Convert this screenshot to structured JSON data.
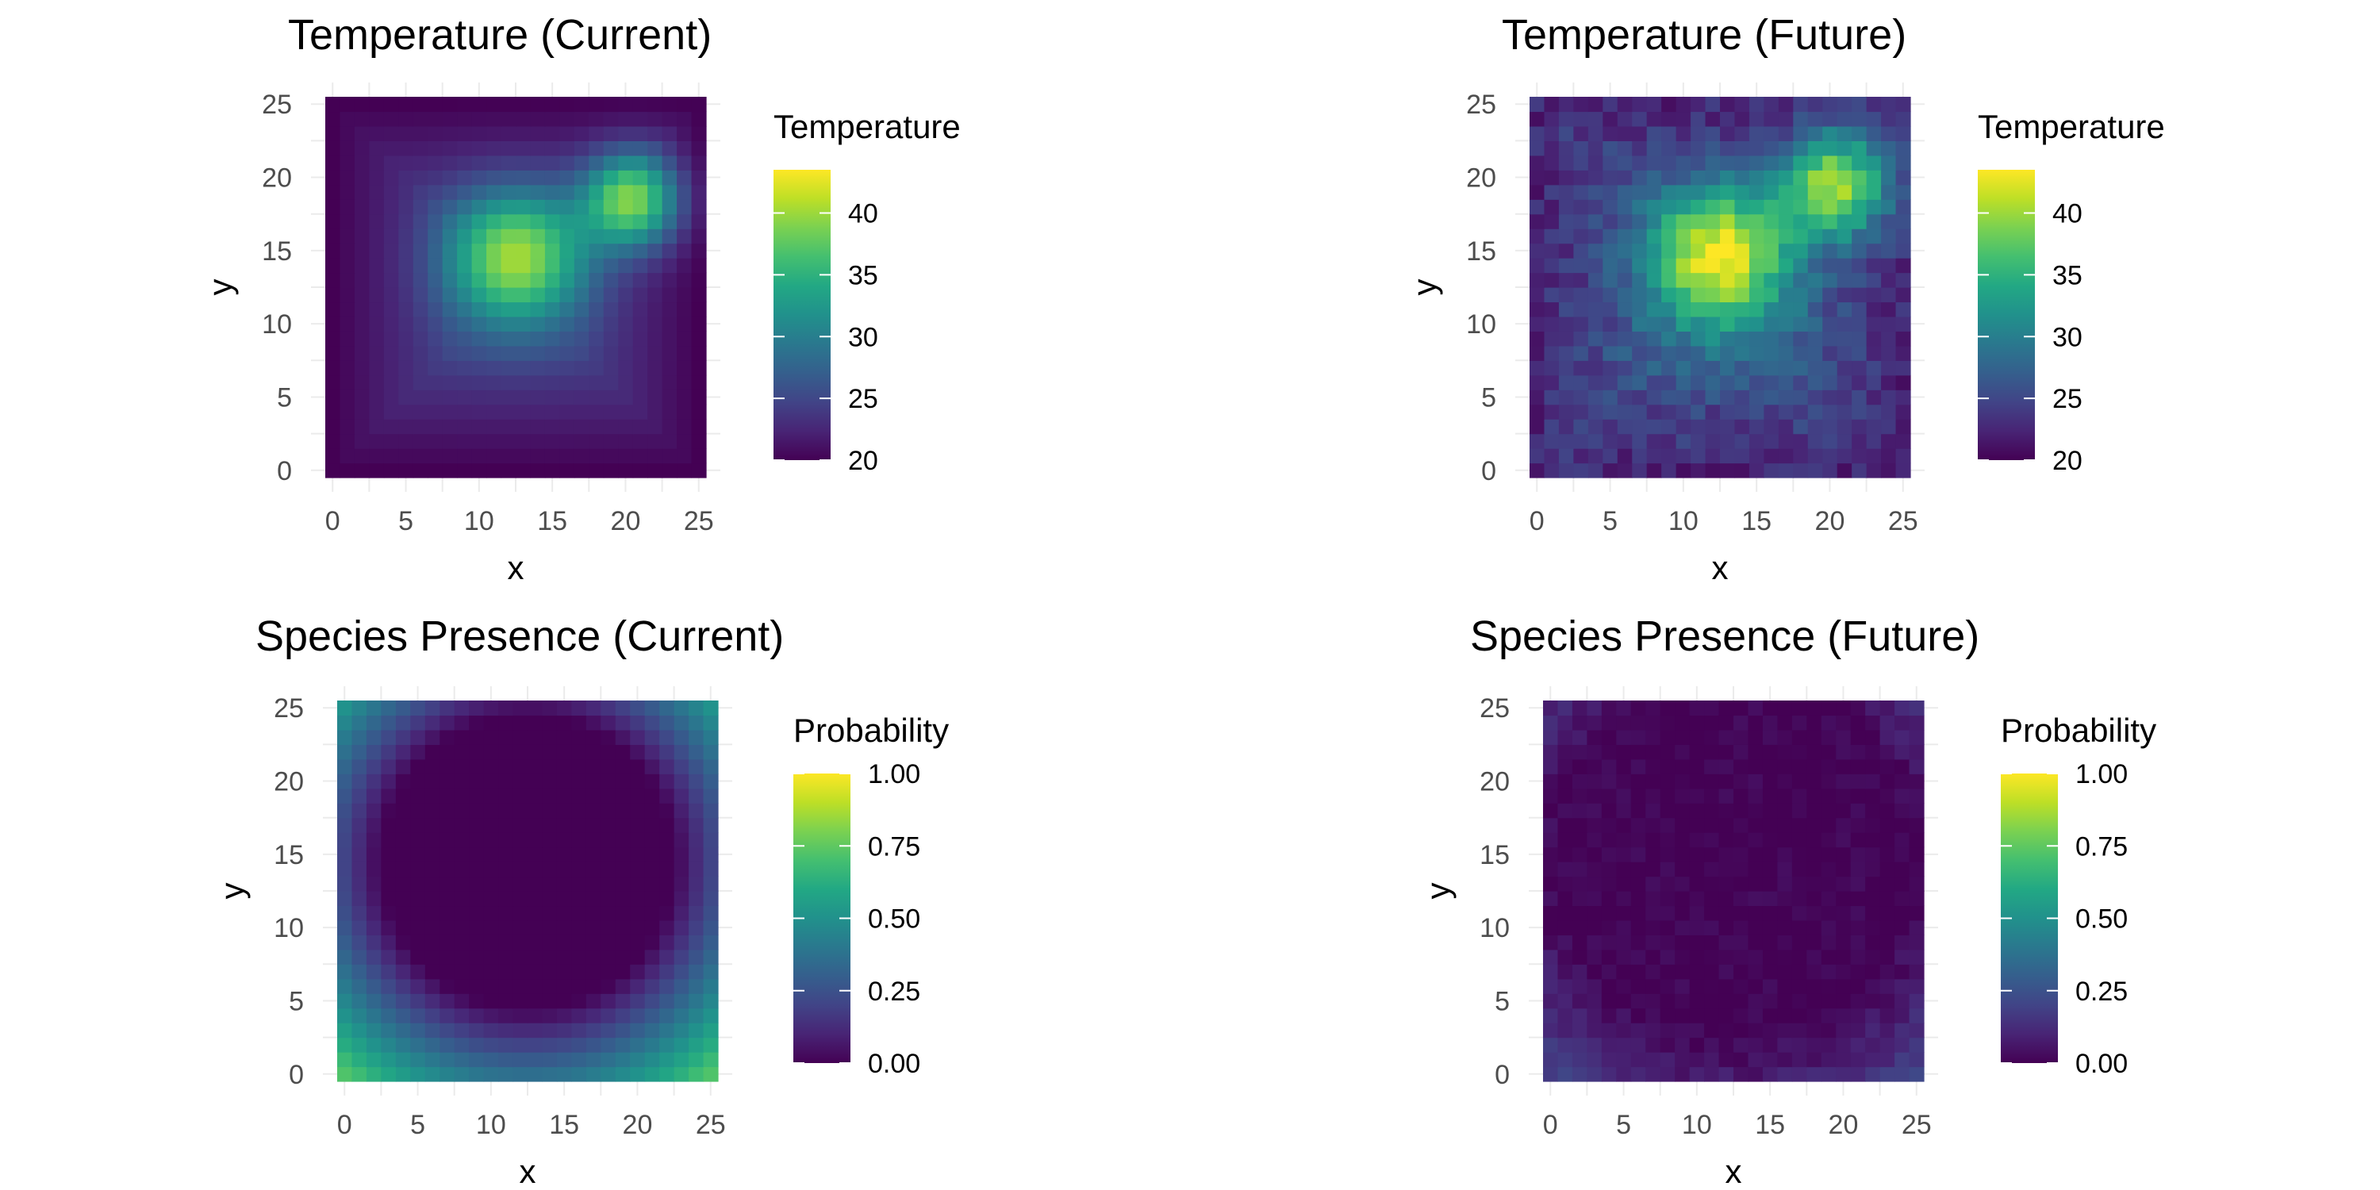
{
  "chart_data": [
    {
      "type": "heatmap",
      "title": "Temperature (Current)",
      "xlabel": "x",
      "ylabel": "y",
      "xlim": [
        0,
        25
      ],
      "ylim": [
        0,
        25
      ],
      "x_ticks": [
        "0",
        "5",
        "10",
        "15",
        "20",
        "25"
      ],
      "y_ticks": [
        "0",
        "5",
        "10",
        "15",
        "20",
        "25"
      ],
      "legend": {
        "title": "Temperature",
        "labels": [
          "20",
          "25",
          "30",
          "35",
          "40"
        ],
        "values": [
          20,
          25,
          30,
          35,
          40
        ],
        "min": 20,
        "max": 43.5,
        "placement": "right"
      },
      "grid": true,
      "colormap": "viridis",
      "field": {
        "base": 20,
        "hotspots": [
          {
            "x": 12.5,
            "y": 14.5,
            "peak": 40,
            "radius": 7
          },
          {
            "x": 20.5,
            "y": 18.5,
            "peak": 40.5,
            "radius": 5
          }
        ]
      }
    },
    {
      "type": "heatmap",
      "title": "Temperature (Future)",
      "xlabel": "x",
      "ylabel": "y",
      "xlim": [
        0,
        25
      ],
      "ylim": [
        0,
        25
      ],
      "x_ticks": [
        "0",
        "5",
        "10",
        "15",
        "20",
        "25"
      ],
      "y_ticks": [
        "0",
        "5",
        "10",
        "15",
        "20",
        "25"
      ],
      "legend": {
        "title": "Temperature",
        "labels": [
          "20",
          "25",
          "30",
          "35",
          "40"
        ],
        "values": [
          20,
          25,
          30,
          35,
          40
        ],
        "min": 20,
        "max": 43.5,
        "placement": "right"
      },
      "grid": true,
      "colormap": "viridis",
      "field": {
        "base": 22.5,
        "noise": 3.5,
        "hotspots": [
          {
            "x": 12.5,
            "y": 14.5,
            "peak": 43,
            "radius": 7
          },
          {
            "x": 20.5,
            "y": 19.5,
            "peak": 42,
            "radius": 5.5
          }
        ]
      }
    },
    {
      "type": "heatmap",
      "title": "Species Presence (Current)",
      "xlabel": "x",
      "ylabel": "y",
      "xlim": [
        0,
        25
      ],
      "ylim": [
        0,
        25
      ],
      "x_ticks": [
        "0",
        "5",
        "10",
        "15",
        "20",
        "25"
      ],
      "y_ticks": [
        "0",
        "5",
        "10",
        "15",
        "20",
        "25"
      ],
      "legend": {
        "title": "Probability",
        "labels": [
          "0.00",
          "0.25",
          "0.50",
          "0.75",
          "1.00"
        ],
        "values": [
          0,
          0.25,
          0.5,
          0.75,
          1
        ],
        "min": 0,
        "max": 1,
        "placement": "right"
      },
      "grid": true,
      "colormap": "viridis",
      "field": {
        "center": [
          12.5,
          14.5
        ],
        "inner_radius": 10,
        "outer_radius": 19,
        "max": 0.72,
        "corner_boost": 0.1
      }
    },
    {
      "type": "heatmap",
      "title": "Species Presence (Future)",
      "xlabel": "x",
      "ylabel": "y",
      "xlim": [
        0,
        25
      ],
      "ylim": [
        0,
        25
      ],
      "x_ticks": [
        "0",
        "5",
        "10",
        "15",
        "20",
        "25"
      ],
      "y_ticks": [
        "0",
        "5",
        "10",
        "15",
        "20",
        "25"
      ],
      "legend": {
        "title": "Probability",
        "labels": [
          "0.00",
          "0.25",
          "0.50",
          "0.75",
          "1.00"
        ],
        "values": [
          0,
          0.25,
          0.5,
          0.75,
          1
        ],
        "min": 0,
        "max": 1,
        "placement": "right"
      },
      "grid": true,
      "colormap": "viridis",
      "field": {
        "center": [
          12.5,
          14.5
        ],
        "inner_radius": 12,
        "outer_radius": 24,
        "max": 0.32,
        "noise": 0.08
      }
    }
  ]
}
